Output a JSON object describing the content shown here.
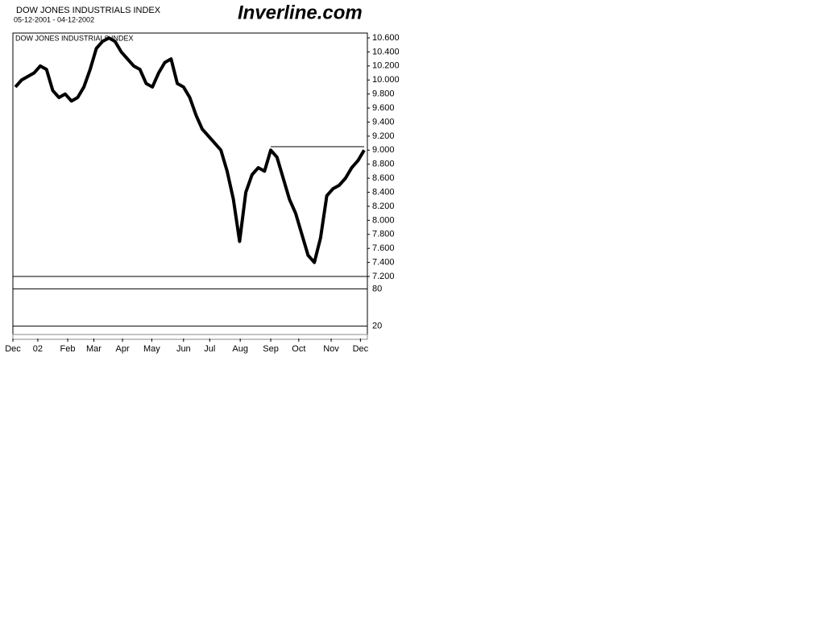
{
  "header": {
    "title": "DOW JONES INDUSTRIALS INDEX",
    "date_range": "05-12-2001 - 04-12-2002",
    "logo": "Inverline.com"
  },
  "chart_data": {
    "type": "line",
    "title": "DOW JONES INDUSTRIALS INDEX",
    "color": "#000000",
    "values": [
      9900,
      10000,
      10050,
      10100,
      10200,
      10150,
      9850,
      9750,
      9800,
      9700,
      9750,
      9900,
      10150,
      10450,
      10550,
      10600,
      10550,
      10400,
      10300,
      10200,
      10150,
      9950,
      9900,
      10100,
      10250,
      10300,
      9950,
      9900,
      9750,
      9500,
      9300,
      9200,
      9100,
      9000,
      8700,
      8300,
      7700,
      8400,
      8650,
      8750,
      8700,
      9000,
      8900,
      8600,
      8300,
      8100,
      7800,
      7500,
      7400,
      7750,
      8350,
      8450,
      8500,
      8600,
      8750,
      8850,
      9000
    ],
    "xlim": [
      -0.4,
      56
    ],
    "xticks": [
      {
        "value": -0.4,
        "label": "Dec"
      },
      {
        "value": 3.6,
        "label": "02"
      },
      {
        "value": 8.4,
        "label": "Feb"
      },
      {
        "value": 12.6,
        "label": "Mar"
      },
      {
        "value": 17.2,
        "label": "Apr"
      },
      {
        "value": 21.9,
        "label": "May"
      },
      {
        "value": 27,
        "label": "Jun"
      },
      {
        "value": 31.2,
        "label": "Jul"
      },
      {
        "value": 36.1,
        "label": "Aug"
      },
      {
        "value": 41,
        "label": "Sep"
      },
      {
        "value": 45.5,
        "label": "Oct"
      },
      {
        "value": 50.7,
        "label": "Nov"
      },
      {
        "value": 55.4,
        "label": "Dec"
      }
    ],
    "ylim": [
      7200,
      10600
    ],
    "yticks": [
      {
        "value": 10600,
        "label": "10.600"
      },
      {
        "value": 10400,
        "label": "10.400"
      },
      {
        "value": 10200,
        "label": "10.200"
      },
      {
        "value": 10000,
        "label": "10.000"
      },
      {
        "value": 9800,
        "label": "9.800"
      },
      {
        "value": 9600,
        "label": "9.600"
      },
      {
        "value": 9400,
        "label": "9.400"
      },
      {
        "value": 9200,
        "label": "9.200"
      },
      {
        "value": 9000,
        "label": "9.000"
      },
      {
        "value": 8800,
        "label": "8.800"
      },
      {
        "value": 8600,
        "label": "8.600"
      },
      {
        "value": 8400,
        "label": "8.400"
      },
      {
        "value": 8200,
        "label": "8.200"
      },
      {
        "value": 8000,
        "label": "8.000"
      },
      {
        "value": 7800,
        "label": "7.800"
      },
      {
        "value": 7600,
        "label": "7.600"
      },
      {
        "value": 7400,
        "label": "7.400"
      },
      {
        "value": 7200,
        "label": "7.200"
      }
    ],
    "reference_line": 9050,
    "lower_panel": {
      "ylim": [
        0,
        100
      ],
      "yticks": [
        80,
        20
      ]
    }
  }
}
